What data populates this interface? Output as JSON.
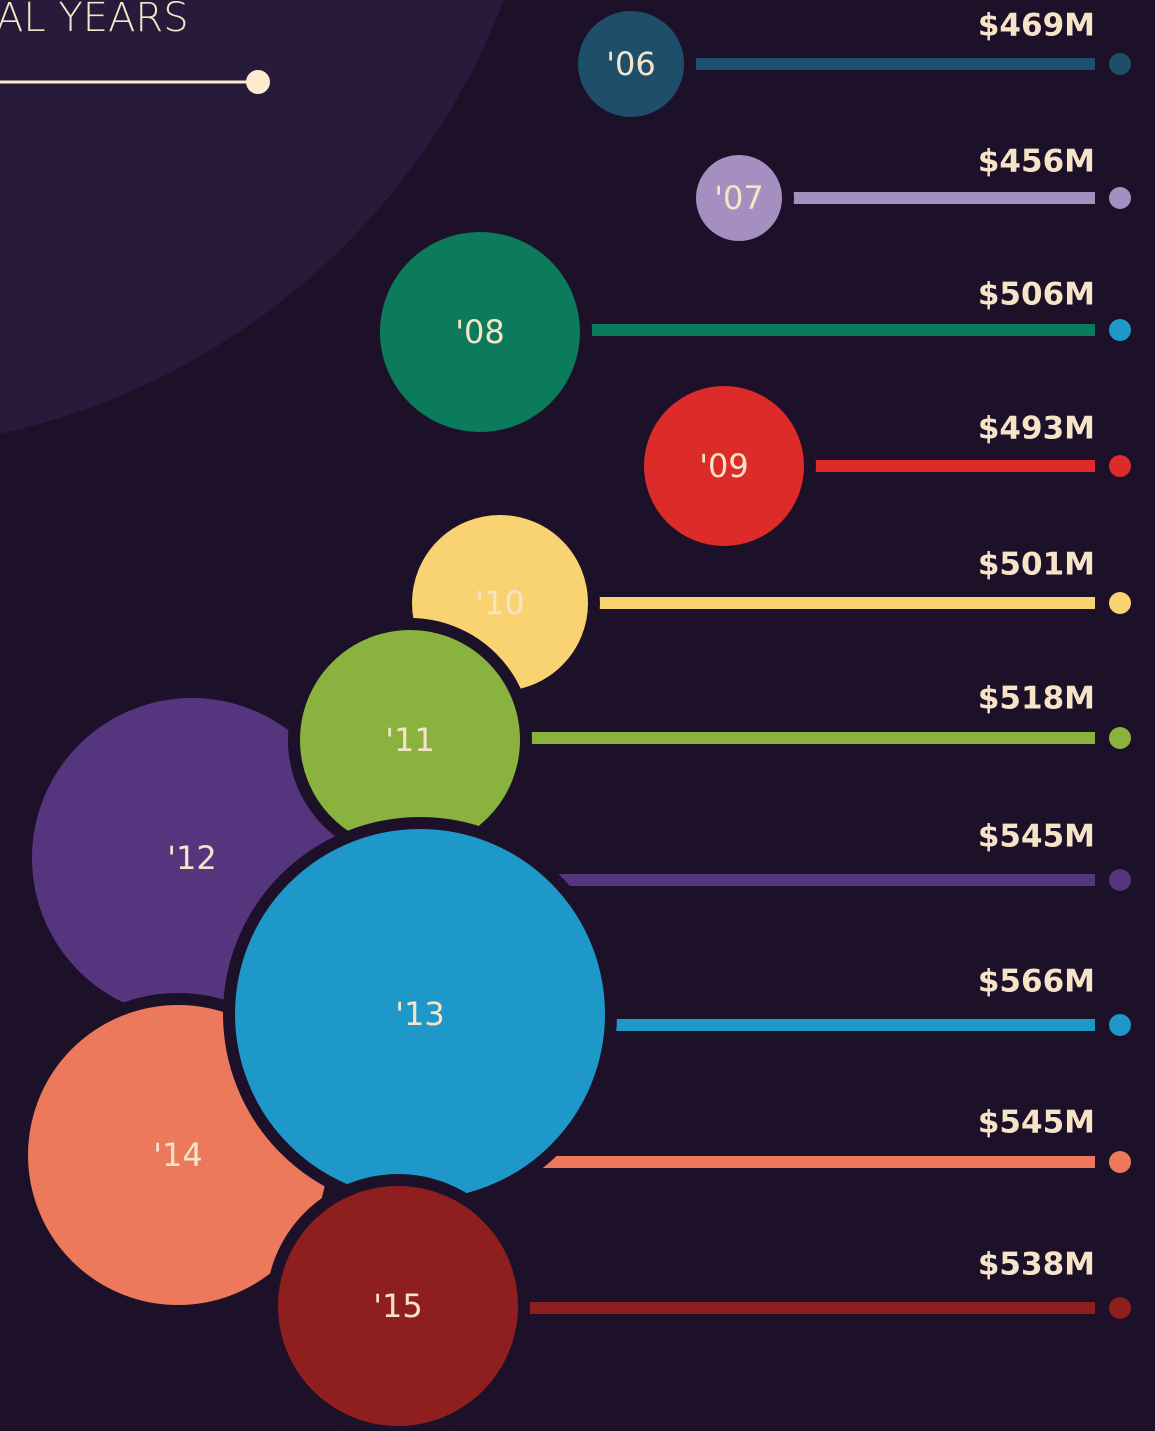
{
  "title": "AL YEARS",
  "items": [
    {
      "label": "'06",
      "amount": "$469M",
      "color": "#1e4e69",
      "dot_color": "#1e4e69"
    },
    {
      "label": "'07",
      "amount": "$456M",
      "color": "#a58fc0",
      "dot_color": "#a58fc0"
    },
    {
      "label": "'08",
      "amount": "$506M",
      "color": "#0c7b5c",
      "dot_color": "#1e98c9"
    },
    {
      "label": "'09",
      "amount": "$493M",
      "color": "#dc2b29",
      "dot_color": "#dc2b29"
    },
    {
      "label": "'10",
      "amount": "$501M",
      "color": "#f9d271",
      "dot_color": "#f9d271"
    },
    {
      "label": "'11",
      "amount": "$518M",
      "color": "#8ab23e",
      "dot_color": "#8ab23e"
    },
    {
      "label": "'12",
      "amount": "$545M",
      "color": "#56357f",
      "dot_color": "#56357f"
    },
    {
      "label": "'13",
      "amount": "$566M",
      "color": "#1e98c9",
      "dot_color": "#1e98c9"
    },
    {
      "label": "'14",
      "amount": "$545M",
      "color": "#ec795c",
      "dot_color": "#ec795c"
    },
    {
      "label": "'15",
      "amount": "$538M",
      "color": "#8e1f1e",
      "dot_color": "#8e1f1e"
    }
  ]
}
